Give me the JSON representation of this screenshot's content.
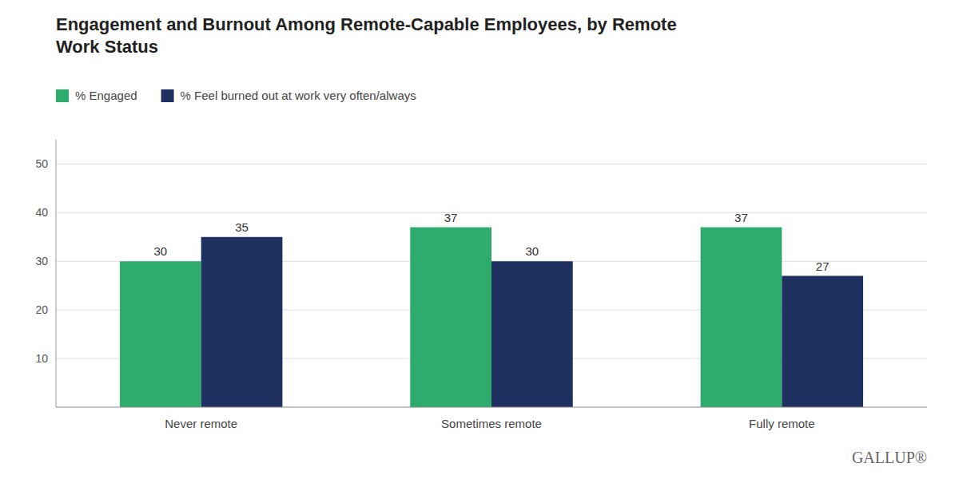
{
  "chart_data": {
    "type": "bar",
    "title": "Engagement and Burnout Among Remote-Capable Employees, by Remote\nWork Status",
    "categories": [
      "Never remote",
      "Sometimes remote",
      "Fully remote"
    ],
    "series": [
      {
        "name": "% Engaged",
        "color": "#2eac6e",
        "values": [
          30,
          37,
          37
        ]
      },
      {
        "name": "% Feel burned out at work very often/always",
        "color": "#1e3060",
        "values": [
          35,
          30,
          27
        ]
      }
    ],
    "ylim": [
      0,
      55
    ],
    "yticks": [
      10,
      20,
      30,
      40,
      50
    ],
    "grid": true,
    "legend": "top-left",
    "data_labels": true,
    "annotations": [
      "GALLUP®"
    ]
  }
}
